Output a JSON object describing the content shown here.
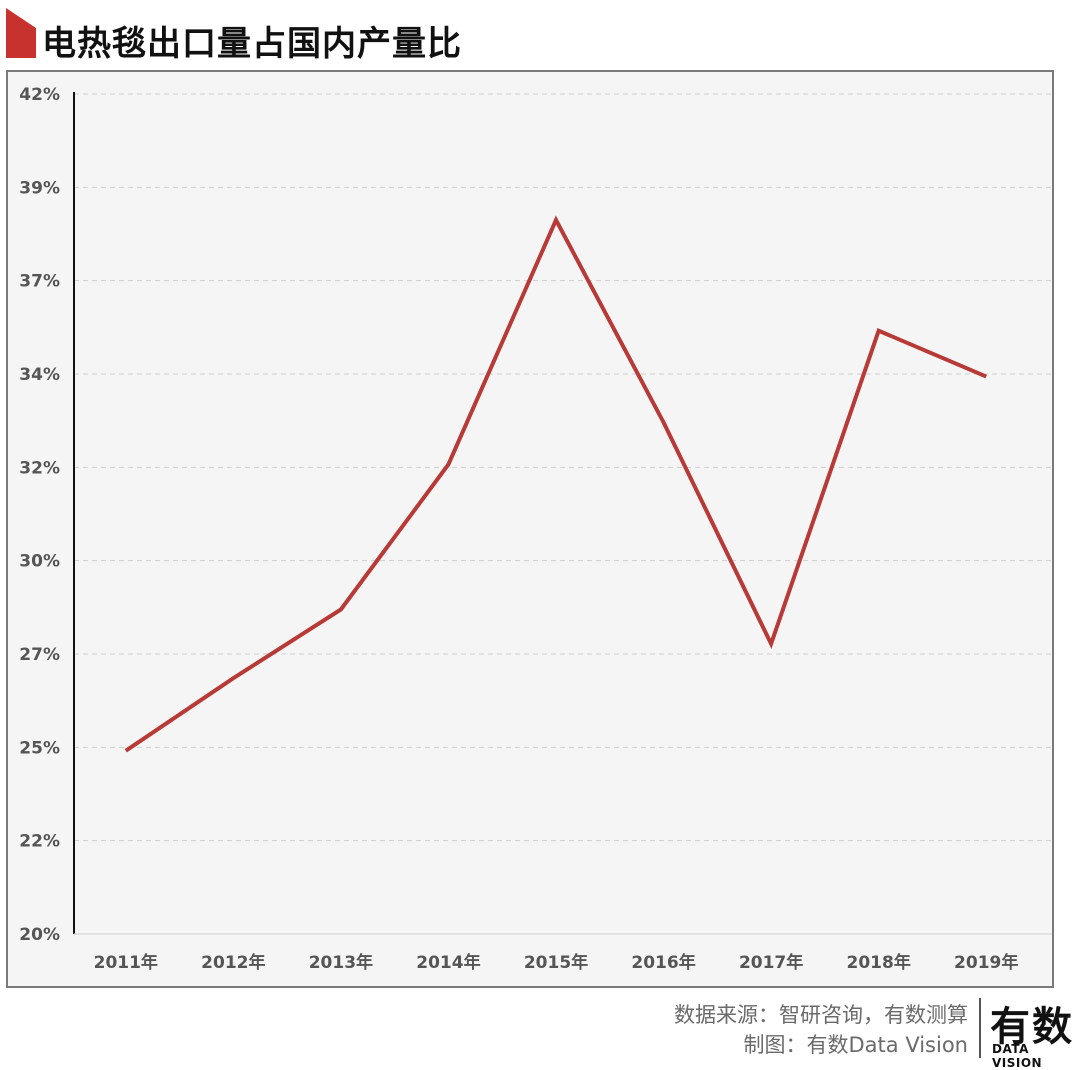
{
  "chart_data": {
    "type": "line",
    "title": "电热毯出口量占国内产量比",
    "categories": [
      "2011年",
      "2012年",
      "2013年",
      "2014年",
      "2015年",
      "2016年",
      "2017年",
      "2018年",
      "2019年"
    ],
    "series": [
      {
        "name": "出口量占国内产量比",
        "color": "#b83a36",
        "values": [
          24.8,
          26.7,
          28.5,
          32.3,
          38.7,
          33.4,
          27.6,
          35.8,
          34.6
        ]
      }
    ],
    "yticks": [
      "42%",
      "39%",
      "37%",
      "34%",
      "32%",
      "30%",
      "27%",
      "25%",
      "22%",
      "20%"
    ],
    "ylim": [
      20,
      42
    ],
    "grid": true,
    "xlabel": "",
    "ylabel": ""
  },
  "source": {
    "line1": "数据来源：智研咨询，有数测算",
    "line2": "制图：有数Data Vision"
  },
  "logo": {
    "main": "有数",
    "sub": "DATA VISION"
  }
}
